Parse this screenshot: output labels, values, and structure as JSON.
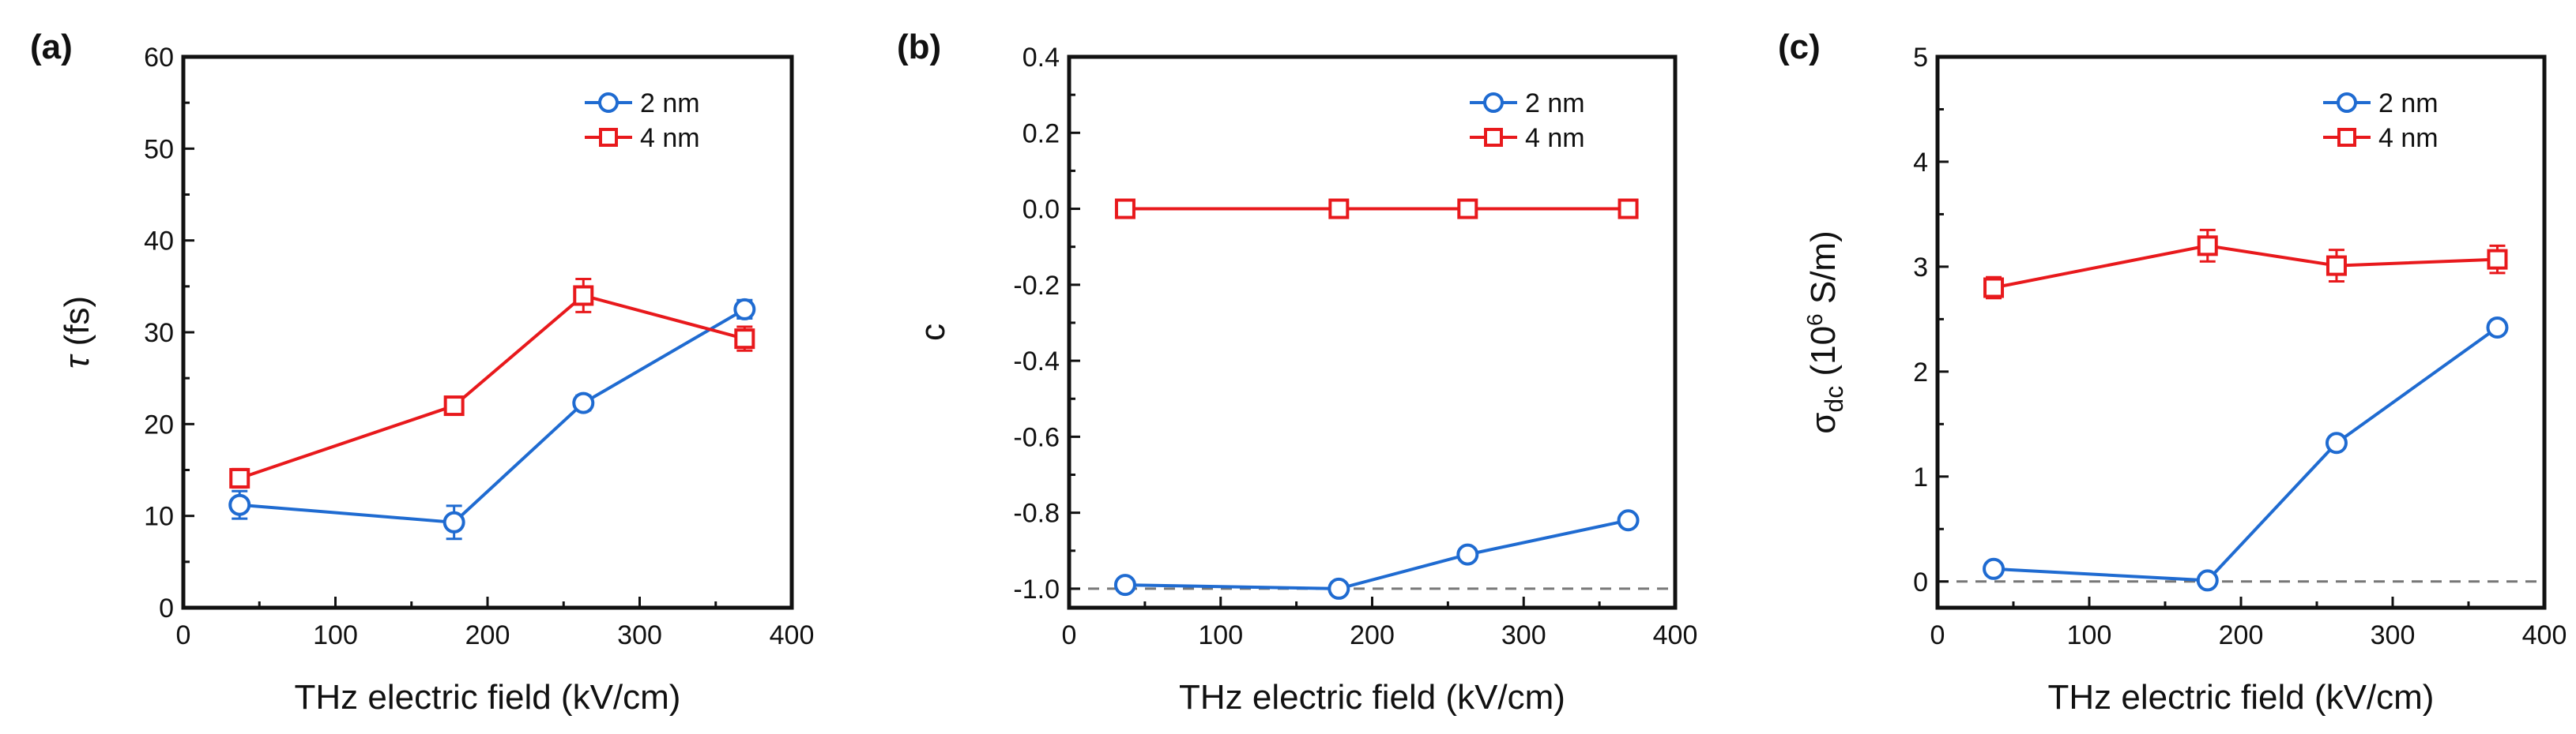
{
  "chart_data": [
    {
      "type": "line",
      "panel_label": "(a)",
      "xlabel": "THz electric field (kV/cm)",
      "ylabel": "τ (fs)",
      "ylabel_parts": [
        "τ",
        " (fs)"
      ],
      "xlim": [
        0,
        400
      ],
      "ylim": [
        0,
        60
      ],
      "xticks": [
        0,
        100,
        200,
        300,
        400
      ],
      "yticks": [
        0,
        10,
        20,
        30,
        40,
        50,
        60
      ],
      "ytick_labels": [
        "0",
        "10",
        "20",
        "30",
        "40",
        "50",
        "60"
      ],
      "reference_line": null,
      "series": [
        {
          "name": "2 nm",
          "color": "#1f6bd1",
          "marker": "circle",
          "x": [
            37,
            178,
            263,
            369
          ],
          "y": [
            11.2,
            9.3,
            22.3,
            32.5
          ],
          "err": [
            1.5,
            1.8,
            0.8,
            1.0
          ]
        },
        {
          "name": "4 nm",
          "color": "#e8191c",
          "marker": "square",
          "x": [
            37,
            178,
            263,
            369
          ],
          "y": [
            14.1,
            22.0,
            34.0,
            29.3
          ],
          "err": [
            1.0,
            0.8,
            1.8,
            1.3
          ]
        }
      ]
    },
    {
      "type": "line",
      "panel_label": "(b)",
      "xlabel": "THz electric field (kV/cm)",
      "ylabel": "c",
      "ylabel_parts": [
        "c"
      ],
      "xlim": [
        0,
        400
      ],
      "ylim": [
        -1.05,
        0.4
      ],
      "xticks": [
        0,
        100,
        200,
        300,
        400
      ],
      "yticks": [
        -1.0,
        -0.8,
        -0.6,
        -0.4,
        -0.2,
        0.0,
        0.2,
        0.4
      ],
      "ytick_labels": [
        "-1.0",
        "-0.8",
        "-0.6",
        "-0.4",
        "-0.2",
        "0.0",
        "0.2",
        "0.4"
      ],
      "reference_line": -1.0,
      "series": [
        {
          "name": "2 nm",
          "color": "#1f6bd1",
          "marker": "circle",
          "x": [
            37,
            178,
            263,
            369
          ],
          "y": [
            -0.99,
            -1.0,
            -0.91,
            -0.82
          ],
          "err": [
            0.015,
            0.01,
            0.01,
            0.015
          ]
        },
        {
          "name": "4 nm",
          "color": "#e8191c",
          "marker": "square",
          "x": [
            37,
            178,
            263,
            369
          ],
          "y": [
            0.0,
            0.0,
            0.0,
            0.0
          ],
          "err": [
            0,
            0,
            0,
            0
          ]
        }
      ]
    },
    {
      "type": "line",
      "panel_label": "(c)",
      "xlabel": "THz electric field (kV/cm)",
      "ylabel": "σdc (10⁶ S/m)",
      "ylabel_parts": [
        "σ",
        "dc",
        " (10",
        "6",
        " S/m)"
      ],
      "xlim": [
        0,
        400
      ],
      "ylim": [
        -0.25,
        5
      ],
      "xticks": [
        0,
        100,
        200,
        300,
        400
      ],
      "yticks": [
        0,
        1,
        2,
        3,
        4,
        5
      ],
      "ytick_labels": [
        "0",
        "1",
        "2",
        "3",
        "4",
        "5"
      ],
      "reference_line": 0,
      "series": [
        {
          "name": "2 nm",
          "color": "#1f6bd1",
          "marker": "circle",
          "x": [
            37,
            178,
            263,
            369
          ],
          "y": [
            0.12,
            0.01,
            1.32,
            2.42
          ],
          "err": [
            0.05,
            0.04,
            0.05,
            0.05
          ]
        },
        {
          "name": "4 nm",
          "color": "#e8191c",
          "marker": "square",
          "x": [
            37,
            178,
            263,
            369
          ],
          "y": [
            2.8,
            3.2,
            3.01,
            3.07
          ],
          "err": [
            0.1,
            0.15,
            0.15,
            0.13
          ]
        }
      ]
    }
  ]
}
